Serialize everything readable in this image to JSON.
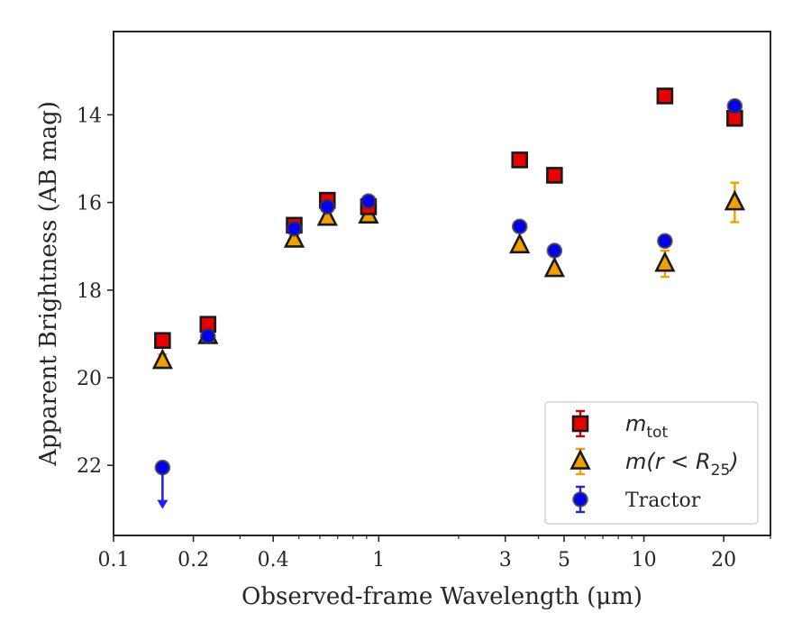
{
  "chart_data": {
    "type": "scatter",
    "xlabel": "Observed-frame Wavelength (μm)",
    "ylabel": "Apparent Brightness (AB mag)",
    "xscale": "log",
    "xlim": [
      0.1,
      30
    ],
    "ylim": [
      23.6,
      12.1
    ],
    "y_inverted": true,
    "xticks": [
      0.1,
      0.2,
      0.4,
      1,
      3,
      5,
      10,
      20
    ],
    "xtick_labels": [
      "0.1",
      "0.2",
      "0.4",
      "1",
      "3",
      "5",
      "10",
      "20"
    ],
    "yticks": [
      14,
      16,
      18,
      20,
      22
    ],
    "ytick_labels": [
      "14",
      "16",
      "18",
      "20",
      "22"
    ],
    "grid": false,
    "legend_position": "bottom-right",
    "series": [
      {
        "name": "m_tot",
        "legend_main": "m",
        "legend_sub": "tot",
        "marker": "square",
        "color": "#e60000",
        "edge_color": "#1a1a1a",
        "error_color": "#cc0000",
        "points": [
          {
            "x": 0.153,
            "y": 19.15,
            "err": 0.05
          },
          {
            "x": 0.227,
            "y": 18.78,
            "err": 0.05
          },
          {
            "x": 0.48,
            "y": 16.52,
            "err": 0.05
          },
          {
            "x": 0.64,
            "y": 15.95,
            "err": 0.05
          },
          {
            "x": 0.915,
            "y": 16.1,
            "err": 0.05
          },
          {
            "x": 3.4,
            "y": 15.03,
            "err": 0.05
          },
          {
            "x": 4.6,
            "y": 15.38,
            "err": 0.05
          },
          {
            "x": 12.0,
            "y": 13.57,
            "err": 0.05
          },
          {
            "x": 22.0,
            "y": 14.08,
            "err": 0.05
          }
        ]
      },
      {
        "name": "m(r < R_25)",
        "legend_main": "m(r < R",
        "legend_sub": "25",
        "legend_close": ")",
        "marker": "triangle",
        "color": "#f0a000",
        "edge_color": "#1a1a1a",
        "error_color": "#f0a000",
        "points": [
          {
            "x": 0.153,
            "y": 19.62,
            "err": 0.15
          },
          {
            "x": 0.227,
            "y": 19.05,
            "err": 0.05
          },
          {
            "x": 0.48,
            "y": 16.85,
            "err": 0.05
          },
          {
            "x": 0.64,
            "y": 16.35,
            "err": 0.05
          },
          {
            "x": 0.915,
            "y": 16.3,
            "err": 0.05
          },
          {
            "x": 3.4,
            "y": 16.98,
            "err": 0.05
          },
          {
            "x": 4.6,
            "y": 17.52,
            "err": 0.05
          },
          {
            "x": 12.0,
            "y": 17.4,
            "err": 0.3
          },
          {
            "x": 22.0,
            "y": 16.0,
            "err": 0.45
          }
        ]
      },
      {
        "name": "Tractor",
        "legend_main": "Tractor",
        "marker": "circle",
        "color": "#0000ee",
        "edge_color": "#333344",
        "error_color": "#2222ee",
        "points": [
          {
            "x": 0.153,
            "y": 22.05,
            "err": 0,
            "upper_limit": true
          },
          {
            "x": 0.227,
            "y": 19.05,
            "err": 0.05
          },
          {
            "x": 0.48,
            "y": 16.6,
            "err": 0.05
          },
          {
            "x": 0.64,
            "y": 16.1,
            "err": 0.05
          },
          {
            "x": 0.915,
            "y": 15.97,
            "err": 0.05
          },
          {
            "x": 3.4,
            "y": 16.55,
            "err": 0.05
          },
          {
            "x": 4.6,
            "y": 17.1,
            "err": 0.05
          },
          {
            "x": 12.0,
            "y": 16.88,
            "err": 0.05
          },
          {
            "x": 22.0,
            "y": 13.8,
            "err": 0.05
          }
        ]
      }
    ]
  }
}
